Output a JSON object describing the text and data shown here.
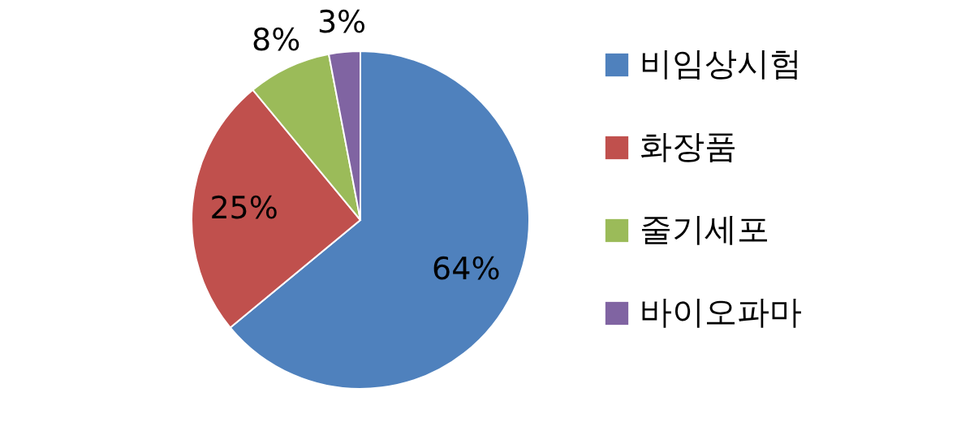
{
  "chart_data": {
    "type": "pie",
    "categories": [
      "비임상시험",
      "화장품",
      "줄기세포",
      "바이오파마"
    ],
    "values": [
      64,
      25,
      8,
      3
    ],
    "value_labels": [
      "64%",
      "25%",
      "8%",
      "3%"
    ],
    "colors": [
      "#4f81bd",
      "#c0504d",
      "#9bbb59",
      "#8064a2"
    ],
    "legend": "right"
  }
}
